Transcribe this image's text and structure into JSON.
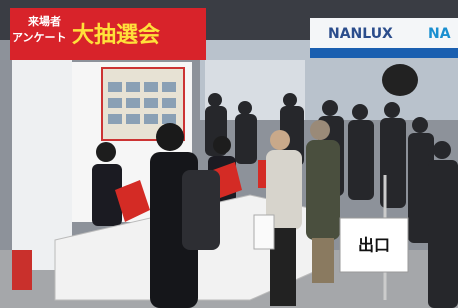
{
  "scene": {
    "banner": {
      "line1": "来場者",
      "line2": "アンケート",
      "main": "大抽選会"
    },
    "right_sign": {
      "brand": "NANLUX",
      "brand_cut": "NA"
    },
    "exit_sign": "出口"
  }
}
